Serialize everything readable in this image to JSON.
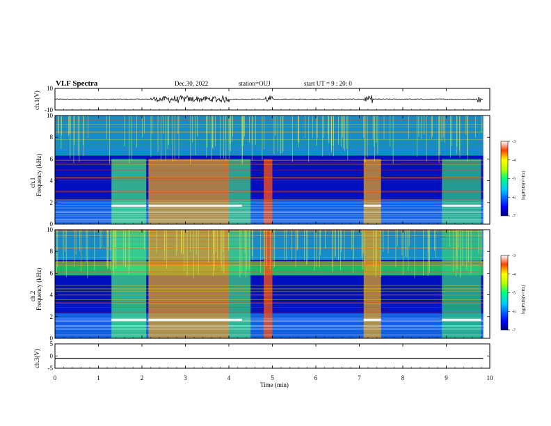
{
  "header": {
    "title": "VLF Spectra",
    "date": "Dec.30, 2022",
    "station": "station=OUJ",
    "start_ut": "start UT =   9 : 20: 0"
  },
  "chart_data": [
    {
      "type": "line",
      "name": "ch1-waveform",
      "ylabel": "ch.1(V)",
      "ylim": [
        -10,
        10
      ],
      "yticks": [
        "10",
        "-10"
      ],
      "bursts_min": [
        [
          2.2,
          4.0
        ],
        [
          4.8,
          5.0
        ],
        [
          7.1,
          7.3
        ],
        [
          9.7,
          9.8
        ]
      ]
    },
    {
      "type": "heatmap",
      "name": "ch1-spectrogram",
      "ylabel": "ch.1\nFrequency (kHz)",
      "ylim": [
        0,
        10
      ],
      "yticks": [
        "0",
        "2",
        "4",
        "6",
        "8",
        "10"
      ],
      "colorbar": {
        "label": "log(PSD)(V²/Hz)",
        "range": [
          -7,
          -3
        ],
        "ticks": [
          "-3",
          "-4",
          "-5",
          "-6",
          "-7"
        ]
      }
    },
    {
      "type": "heatmap",
      "name": "ch2-spectrogram",
      "ylabel": "ch.2\nFrequency (kHz)",
      "ylim": [
        0,
        10
      ],
      "yticks": [
        "0",
        "2",
        "4",
        "6",
        "8",
        "10"
      ],
      "colorbar": {
        "label": "log(PSD)(V²/Hz)",
        "range": [
          -7,
          -3
        ],
        "ticks": [
          "-3",
          "-4",
          "-5",
          "-6",
          "-7"
        ]
      }
    },
    {
      "type": "line",
      "name": "ch3-waveform",
      "ylabel": "ch.3(V)",
      "ylim": [
        -5,
        5
      ],
      "yticks": [
        "5",
        "0",
        "-5"
      ],
      "value": -1
    }
  ],
  "xaxis": {
    "label": "Time (min)",
    "range": [
      0,
      10
    ],
    "ticks": [
      "0",
      "1",
      "2",
      "3",
      "4",
      "5",
      "6",
      "7",
      "8",
      "9",
      "10"
    ]
  },
  "colors": {
    "low": "#00007f",
    "mid": "#00c8ff",
    "high": "#ff0000"
  }
}
